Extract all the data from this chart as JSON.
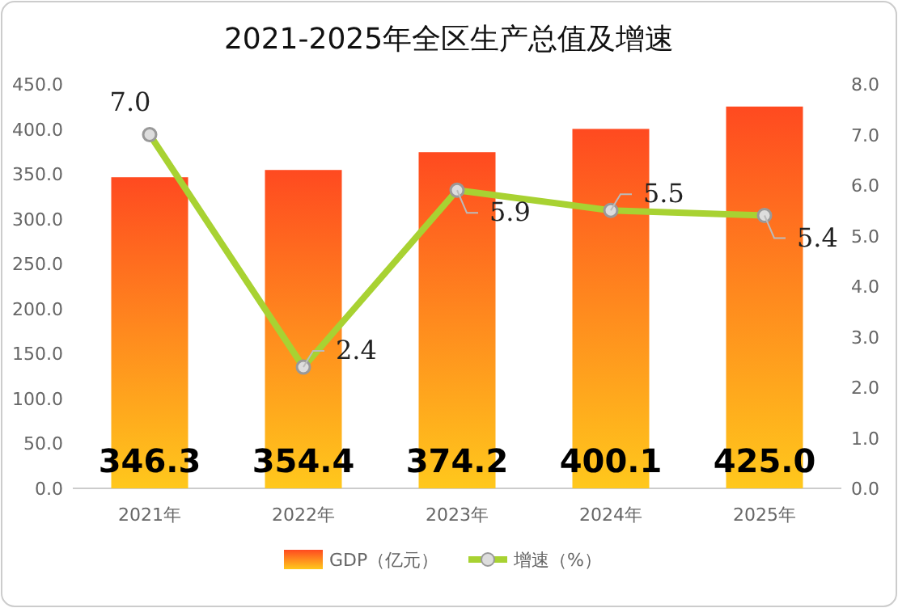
{
  "chart_data": {
    "type": "bar",
    "title": "2021-2025年全区生产总值及增速",
    "categories": [
      "2021年",
      "2022年",
      "2023年",
      "2024年",
      "2025年"
    ],
    "series": [
      {
        "name": "GDP（亿元）",
        "color": "#ff8a1e",
        "values": [
          346.3,
          354.4,
          374.2,
          400.1,
          425.0
        ],
        "value_labels": [
          "346.3",
          "354.4",
          "374.2",
          "400.1",
          "425.0"
        ]
      },
      {
        "name": "增速（%）",
        "type": "line",
        "axis": "y2",
        "color": "#a8d232",
        "values": [
          7.0,
          2.4,
          5.9,
          5.5,
          5.4
        ],
        "value_labels": [
          "7.0",
          "2.4",
          "5.9",
          "5.5",
          "5.4"
        ]
      }
    ],
    "ylim": [
      0,
      450
    ],
    "yticks": [
      {
        "value": 0,
        "label": "0.0"
      },
      {
        "value": 50,
        "label": "50.0"
      },
      {
        "value": 100,
        "label": "100.0"
      },
      {
        "value": 150,
        "label": "150.0"
      },
      {
        "value": 200,
        "label": "200.0"
      },
      {
        "value": 250,
        "label": "250.0"
      },
      {
        "value": 300,
        "label": "300.0"
      },
      {
        "value": 350,
        "label": "350.0"
      },
      {
        "value": 400,
        "label": "400.0"
      },
      {
        "value": 450,
        "label": "450.0"
      }
    ],
    "y2lim": [
      0,
      8
    ],
    "y2ticks": [
      {
        "value": 0,
        "label": "0.0"
      },
      {
        "value": 1,
        "label": "1.0"
      },
      {
        "value": 2,
        "label": "2.0"
      },
      {
        "value": 3,
        "label": "3.0"
      },
      {
        "value": 4,
        "label": "4.0"
      },
      {
        "value": 5,
        "label": "5.0"
      },
      {
        "value": 6,
        "label": "6.0"
      },
      {
        "value": 7,
        "label": "7.0"
      },
      {
        "value": 8,
        "label": "8.0"
      }
    ],
    "data_labels": true,
    "legend": "bottom",
    "marker": "circle",
    "grid": false
  }
}
